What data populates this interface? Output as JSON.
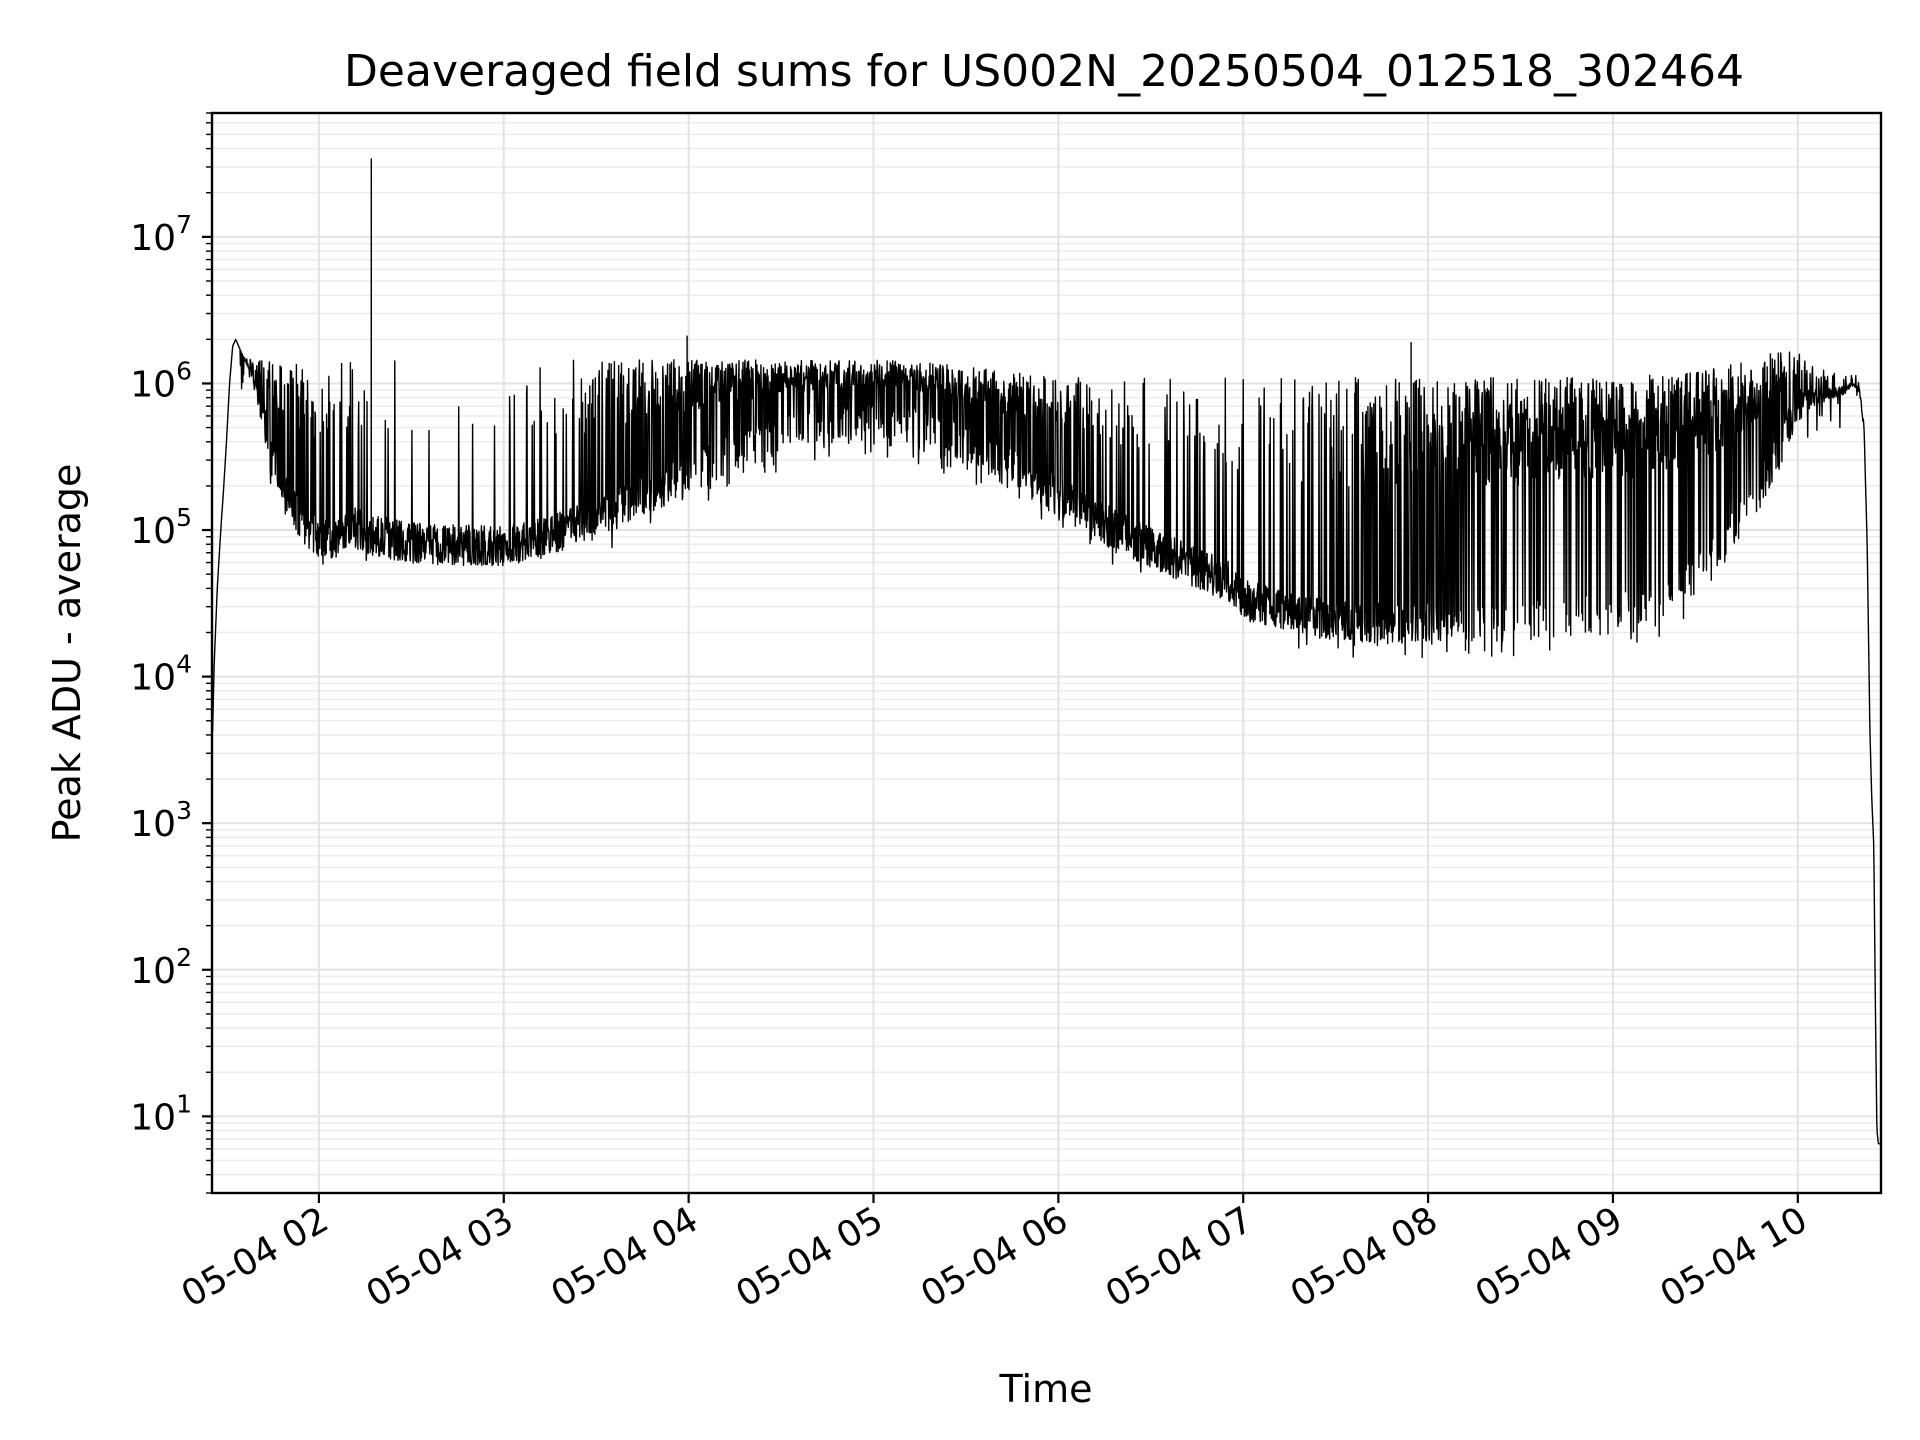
{
  "chart_data": {
    "type": "line",
    "title": "Deaveraged field sums for US002N_20250504_012518_302464",
    "xlabel": "Time",
    "ylabel": "Peak ADU - average",
    "yscale": "log",
    "ylim": [
      3,
      70000000
    ],
    "xlim": [
      "2025-05-04T01:25:18",
      "2025-05-04T10:27:00"
    ],
    "grid": true,
    "grid_minor": true,
    "line_color": "#000000",
    "x_ticks": [
      {
        "value": "2025-05-04T02:00:00",
        "label": "05-04 02"
      },
      {
        "value": "2025-05-04T03:00:00",
        "label": "05-04 03"
      },
      {
        "value": "2025-05-04T04:00:00",
        "label": "05-04 04"
      },
      {
        "value": "2025-05-04T05:00:00",
        "label": "05-04 05"
      },
      {
        "value": "2025-05-04T06:00:00",
        "label": "05-04 06"
      },
      {
        "value": "2025-05-04T07:00:00",
        "label": "05-04 07"
      },
      {
        "value": "2025-05-04T08:00:00",
        "label": "05-04 08"
      },
      {
        "value": "2025-05-04T09:00:00",
        "label": "05-04 09"
      },
      {
        "value": "2025-05-04T10:00:00",
        "label": "05-04 10"
      }
    ],
    "y_ticks": [
      {
        "value": 10,
        "base": "10",
        "exp": "1"
      },
      {
        "value": 100,
        "base": "10",
        "exp": "2"
      },
      {
        "value": 1000,
        "base": "10",
        "exp": "3"
      },
      {
        "value": 10000,
        "base": "10",
        "exp": "4"
      },
      {
        "value": 100000,
        "base": "10",
        "exp": "5"
      },
      {
        "value": 1000000,
        "base": "10",
        "exp": "6"
      },
      {
        "value": 10000000,
        "base": "10",
        "exp": "7"
      }
    ],
    "series": [
      {
        "x": [
          "2025-05-04T01:25:30",
          "2025-05-04T01:26:00",
          "2025-05-04T01:27:00",
          "2025-05-04T01:28:00",
          "2025-05-04T01:29:00",
          "2025-05-04T01:30:00",
          "2025-05-04T01:31:00",
          "2025-05-04T01:32:00",
          "2025-05-04T01:33:00",
          "2025-05-04T01:35:00",
          "2025-05-04T01:38:00",
          "2025-05-04T01:42:00",
          "2025-05-04T01:45:00",
          "2025-05-04T01:48:00",
          "2025-05-04T01:50:00",
          "2025-05-04T01:55:00",
          "2025-05-04T02:00:00",
          "2025-05-04T02:05:00",
          "2025-05-04T02:10:00",
          "2025-05-04T02:15:00",
          "2025-05-04T02:20:00",
          "2025-05-04T02:25:00",
          "2025-05-04T02:30:00",
          "2025-05-04T02:40:00",
          "2025-05-04T02:50:00",
          "2025-05-04T03:00:00",
          "2025-05-04T03:10:00",
          "2025-05-04T03:20:00",
          "2025-05-04T03:30:00",
          "2025-05-04T03:40:00",
          "2025-05-04T03:50:00",
          "2025-05-04T04:00:00",
          "2025-05-04T04:15:00",
          "2025-05-04T04:30:00",
          "2025-05-04T04:45:00",
          "2025-05-04T05:00:00",
          "2025-05-04T05:15:00",
          "2025-05-04T05:30:00",
          "2025-05-04T05:45:00",
          "2025-05-04T06:00:00",
          "2025-05-04T06:15:00",
          "2025-05-04T06:30:00",
          "2025-05-04T06:45:00",
          "2025-05-04T06:55:00",
          "2025-05-04T07:00:00",
          "2025-05-04T07:15:00",
          "2025-05-04T07:30:00",
          "2025-05-04T07:45:00",
          "2025-05-04T08:00:00",
          "2025-05-04T08:15:00",
          "2025-05-04T08:30:00",
          "2025-05-04T08:45:00",
          "2025-05-04T09:00:00",
          "2025-05-04T09:15:00",
          "2025-05-04T09:30:00",
          "2025-05-04T09:45:00",
          "2025-05-04T09:55:00",
          "2025-05-04T10:00:00",
          "2025-05-04T10:05:00",
          "2025-05-04T10:10:00",
          "2025-05-04T10:15:00",
          "2025-05-04T10:18:00",
          "2025-05-04T10:20:00",
          "2025-05-04T10:21:30",
          "2025-05-04T10:22:30",
          "2025-05-04T10:23:20",
          "2025-05-04T10:24:00",
          "2025-05-04T10:24:40",
          "2025-05-04T10:25:10",
          "2025-05-04T10:25:40",
          "2025-05-04T10:26:10",
          "2025-05-04T10:26:40"
        ],
        "base": [
          4200,
          12000,
          40000,
          90000,
          180000,
          400000,
          1000000,
          1800000,
          2000000,
          1600000,
          1200000,
          600000,
          300000,
          200000,
          160000,
          110000,
          85000,
          90000,
          110000,
          95000,
          90000,
          85000,
          82000,
          80000,
          78000,
          78000,
          85000,
          100000,
          120000,
          150000,
          190000,
          240000,
          330000,
          450000,
          520000,
          560000,
          500000,
          380000,
          260000,
          170000,
          110000,
          75000,
          55000,
          45000,
          34000,
          27000,
          24000,
          23000,
          23500,
          24000,
          24500,
          25000,
          27000,
          33000,
          55000,
          150000,
          400000,
          700000,
          800000,
          850000,
          900000,
          1000000,
          900000,
          500000,
          80000,
          5000,
          1500,
          700,
          60,
          8,
          6.5,
          6.5
        ],
        "upper": [
          4200,
          12000,
          40000,
          90000,
          180000,
          400000,
          1000000,
          1800000,
          2000000,
          1600000,
          1450000,
          1450000,
          1450000,
          1450000,
          1450000,
          1450000,
          1450000,
          1450000,
          1450000,
          1450000,
          1450000,
          1450000,
          1450000,
          1450000,
          1450000,
          1450000,
          1450000,
          1450000,
          1450000,
          1450000,
          1450000,
          1450000,
          1450000,
          1450000,
          1450000,
          1450000,
          1400000,
          1300000,
          1200000,
          1100000,
          1100000,
          1100000,
          1100000,
          1100000,
          1100000,
          1100000,
          1100000,
          1100000,
          1100000,
          1100000,
          1100000,
          1100000,
          1100000,
          1150000,
          1250000,
          1450000,
          1700000,
          1800000,
          1300000,
          1200000,
          1200000,
          1150000,
          1100000,
          600000,
          80000,
          5000,
          1500,
          700,
          60,
          8,
          6.5,
          6.5
        ],
        "spike_density": [
          0,
          0,
          0,
          0,
          0,
          0,
          0,
          0,
          0,
          0.2,
          0.35,
          0.35,
          0.3,
          0.3,
          0.28,
          0.25,
          0.2,
          0.15,
          0.1,
          0.08,
          0.06,
          0.05,
          0.05,
          0.04,
          0.04,
          0.05,
          0.06,
          0.1,
          0.25,
          0.4,
          0.55,
          0.65,
          0.7,
          0.7,
          0.7,
          0.7,
          0.68,
          0.62,
          0.55,
          0.4,
          0.25,
          0.15,
          0.1,
          0.08,
          0.08,
          0.15,
          0.25,
          0.4,
          0.55,
          0.7,
          0.8,
          0.82,
          0.82,
          0.8,
          0.75,
          0.7,
          0.5,
          0.3,
          0.2,
          0.15,
          0.15,
          0.1,
          0.05,
          0,
          0,
          0,
          0,
          0,
          0,
          0,
          0,
          0
        ],
        "notable_spikes": [
          {
            "x": "2025-05-04T02:17:00",
            "y": 34000000
          },
          {
            "x": "2025-05-04T03:59:30",
            "y": 2100000
          },
          {
            "x": "2025-05-04T07:54:30",
            "y": 1900000
          }
        ]
      }
    ]
  }
}
